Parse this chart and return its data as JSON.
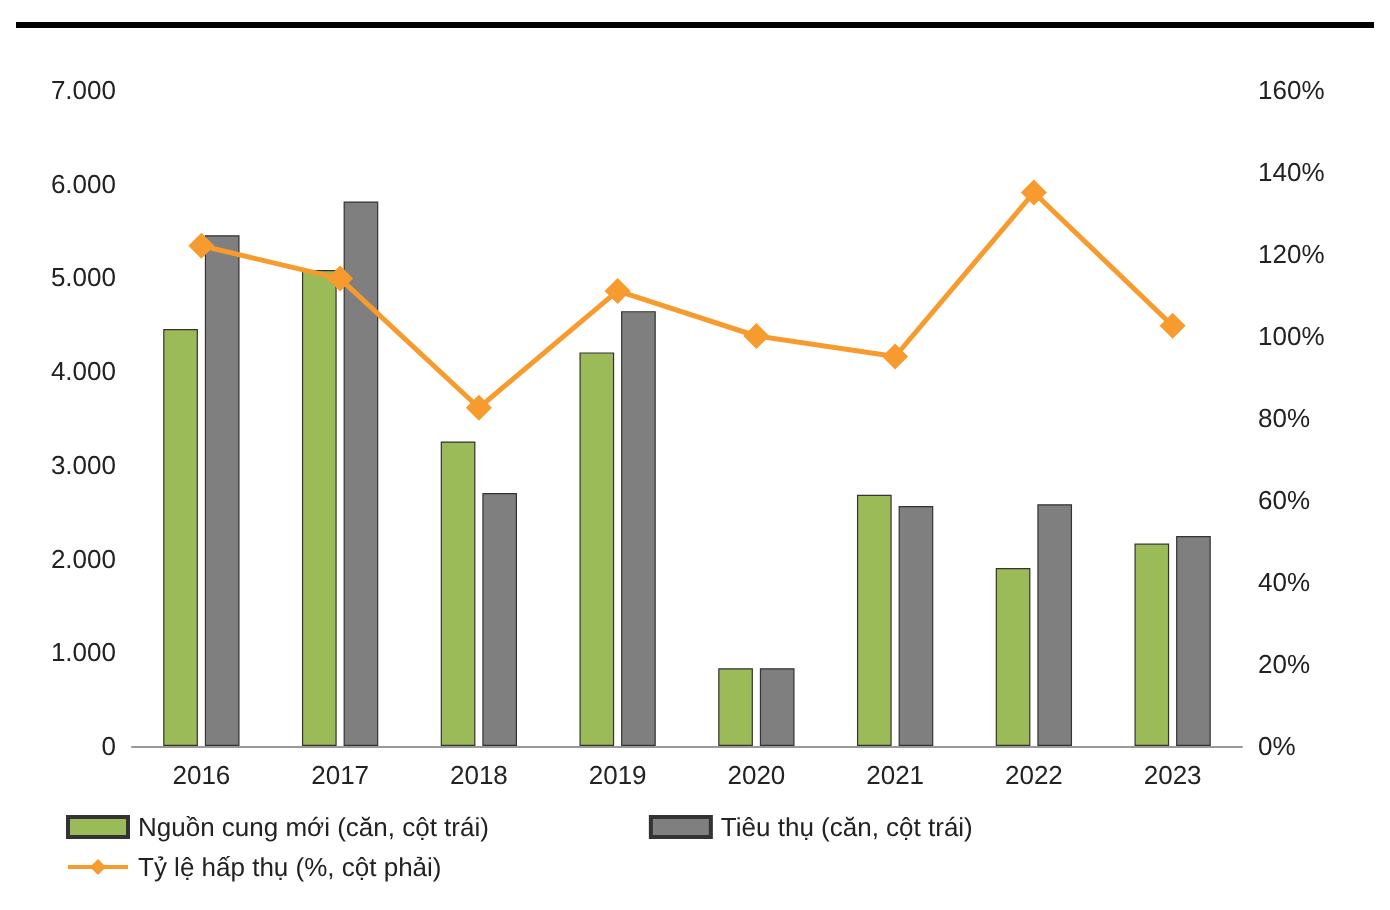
{
  "chart_data": {
    "type": "bar",
    "categories": [
      "2016",
      "2017",
      "2018",
      "2019",
      "2020",
      "2021",
      "2022",
      "2023"
    ],
    "series": [
      {
        "name": "Nguồn cung mới (căn, cột trái)",
        "color": "#9bbb59",
        "values": [
          4450,
          5080,
          3250,
          4200,
          830,
          2680,
          1900,
          2160
        ]
      },
      {
        "name": "Tiêu thụ (căn, cột trái)",
        "color": "#7f7f7f",
        "values": [
          5450,
          5810,
          2700,
          4640,
          830,
          2560,
          2580,
          2240
        ]
      },
      {
        "name": "Tỷ lệ hấp thụ (%, cột phải)",
        "type": "line",
        "axis": "y2",
        "color": "#f79b2e",
        "marker": "diamond",
        "values": [
          122,
          114,
          82.5,
          111,
          100,
          95,
          135,
          102.5
        ]
      }
    ],
    "ylim": [
      0,
      7000
    ],
    "yticks": [
      {
        "value": 0,
        "label": "0"
      },
      {
        "value": 1000,
        "label": "1.000"
      },
      {
        "value": 2000,
        "label": "2.000"
      },
      {
        "value": 3000,
        "label": "3.000"
      },
      {
        "value": 4000,
        "label": "4.000"
      },
      {
        "value": 5000,
        "label": "5.000"
      },
      {
        "value": 6000,
        "label": "6.000"
      },
      {
        "value": 7000,
        "label": "7.000"
      }
    ],
    "y2lim": [
      0,
      160
    ],
    "y2ticks": [
      {
        "value": 0,
        "label": "0%"
      },
      {
        "value": 20,
        "label": "20%"
      },
      {
        "value": 40,
        "label": "40%"
      },
      {
        "value": 60,
        "label": "60%"
      },
      {
        "value": 80,
        "label": "80%"
      },
      {
        "value": 100,
        "label": "100%"
      },
      {
        "value": 120,
        "label": "120%"
      },
      {
        "value": 140,
        "label": "140%"
      },
      {
        "value": 160,
        "label": "160%"
      }
    ],
    "legend": "bottom"
  }
}
